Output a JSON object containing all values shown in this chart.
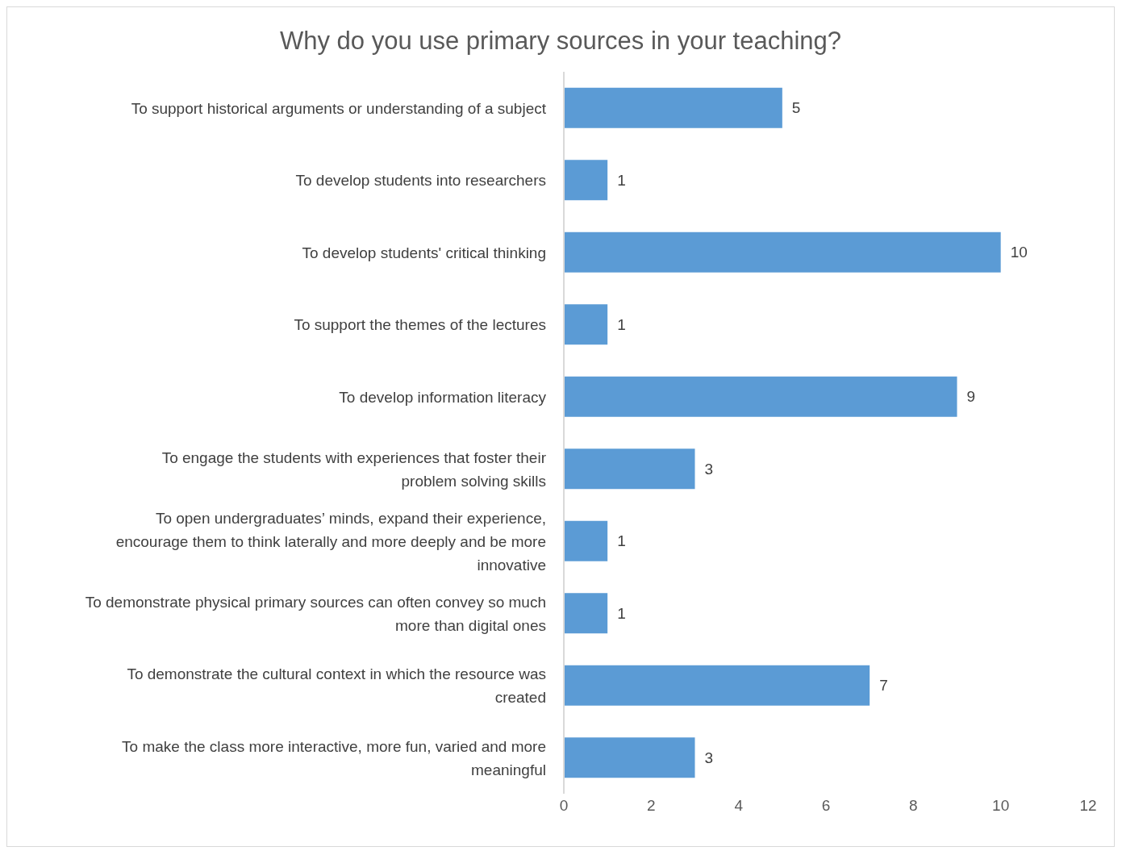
{
  "chart_data": {
    "type": "bar",
    "orientation": "horizontal",
    "title": "Why do you use primary sources in your teaching?",
    "categories": [
      "To support historical arguments or understanding of a subject",
      "To develop students into researchers",
      "To develop students' critical thinking",
      "To support the themes of the lectures",
      "To develop information literacy",
      "To engage the students with experiences that foster their problem solving skills",
      "To open undergraduates’ minds, expand their experience, encourage them to think laterally and more deeply and be more innovative",
      "To demonstrate physical primary sources can often convey so much more than digital ones",
      "To demonstrate the cultural context in which the resource was created",
      "To make the class more interactive, more fun, varied and more meaningful"
    ],
    "values": [
      5,
      1,
      10,
      1,
      9,
      3,
      1,
      1,
      7,
      3
    ],
    "color": "#5b9bd5",
    "xlim": [
      0,
      12
    ],
    "xticks": [
      0,
      2,
      4,
      6,
      8,
      10,
      12
    ],
    "grid": false,
    "legend": false,
    "data_labels": true
  }
}
